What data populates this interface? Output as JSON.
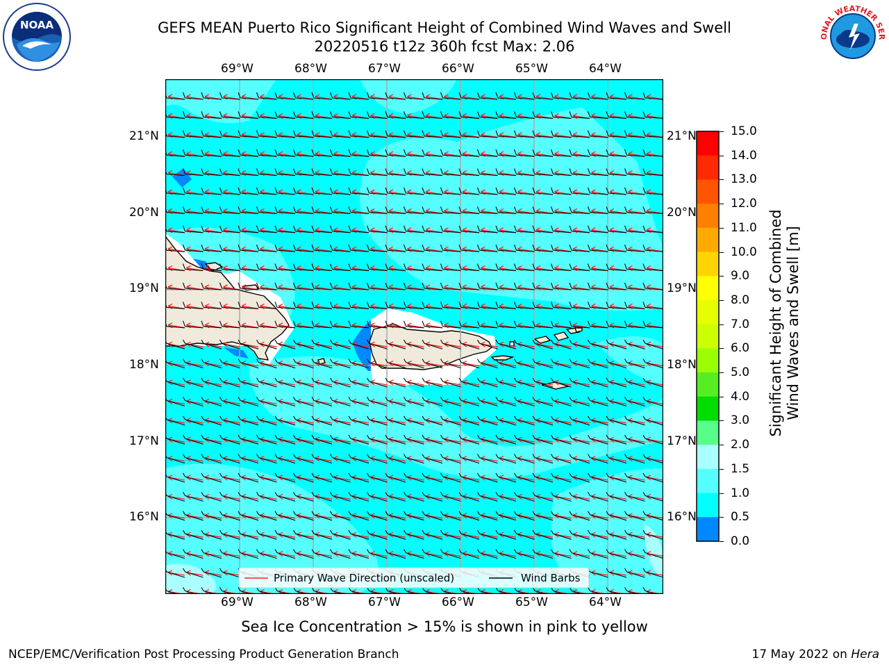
{
  "title": {
    "line1": "GEFS MEAN Puerto Rico Significant Height of Combined Wind Waves and Swell",
    "line2": "20220516 t12z 360h fcst   Max: 2.06"
  },
  "logos": {
    "noaa_text": "NOAA",
    "nws_text": "NATIONAL WEATHER SERVICE"
  },
  "map": {
    "lon_labels": [
      "69°W",
      "68°W",
      "67°W",
      "66°W",
      "65°W",
      "64°W"
    ],
    "lat_labels": [
      "21°N",
      "20°N",
      "19°N",
      "18°N",
      "17°N",
      "16°N"
    ],
    "legend": {
      "wave_dir": "Primary Wave Direction (unscaled)",
      "wind_barbs": "Wind Barbs"
    }
  },
  "colorbar": {
    "ticks": [
      "15.0",
      "14.0",
      "13.0",
      "12.0",
      "11.0",
      "10.0",
      "9.0",
      "8.0",
      "7.0",
      "6.0",
      "5.0",
      "4.0",
      "3.0",
      "2.0",
      "1.5",
      "1.0",
      "0.5",
      "0.0"
    ],
    "title_line1": "Significant Height of Combined",
    "title_line2": "Wind Waves and Swell [m]",
    "colors": [
      "#ff0000",
      "#ff2a00",
      "#ff5500",
      "#ff8000",
      "#ffaa00",
      "#ffd500",
      "#ffff00",
      "#e6ff00",
      "#ccff00",
      "#99ff00",
      "#55ee22",
      "#00dd00",
      "#55ff88",
      "#aaffff",
      "#55ffff",
      "#00ffff",
      "#0088ff",
      "#0000ff"
    ]
  },
  "note": "Sea Ice Concentration > 15% is shown in pink to yellow",
  "footer": {
    "left": "NCEP/EMC/Verification Post Processing Product Generation Branch",
    "right_prefix": "17 May 2022 on ",
    "right_host": "Hera"
  }
}
